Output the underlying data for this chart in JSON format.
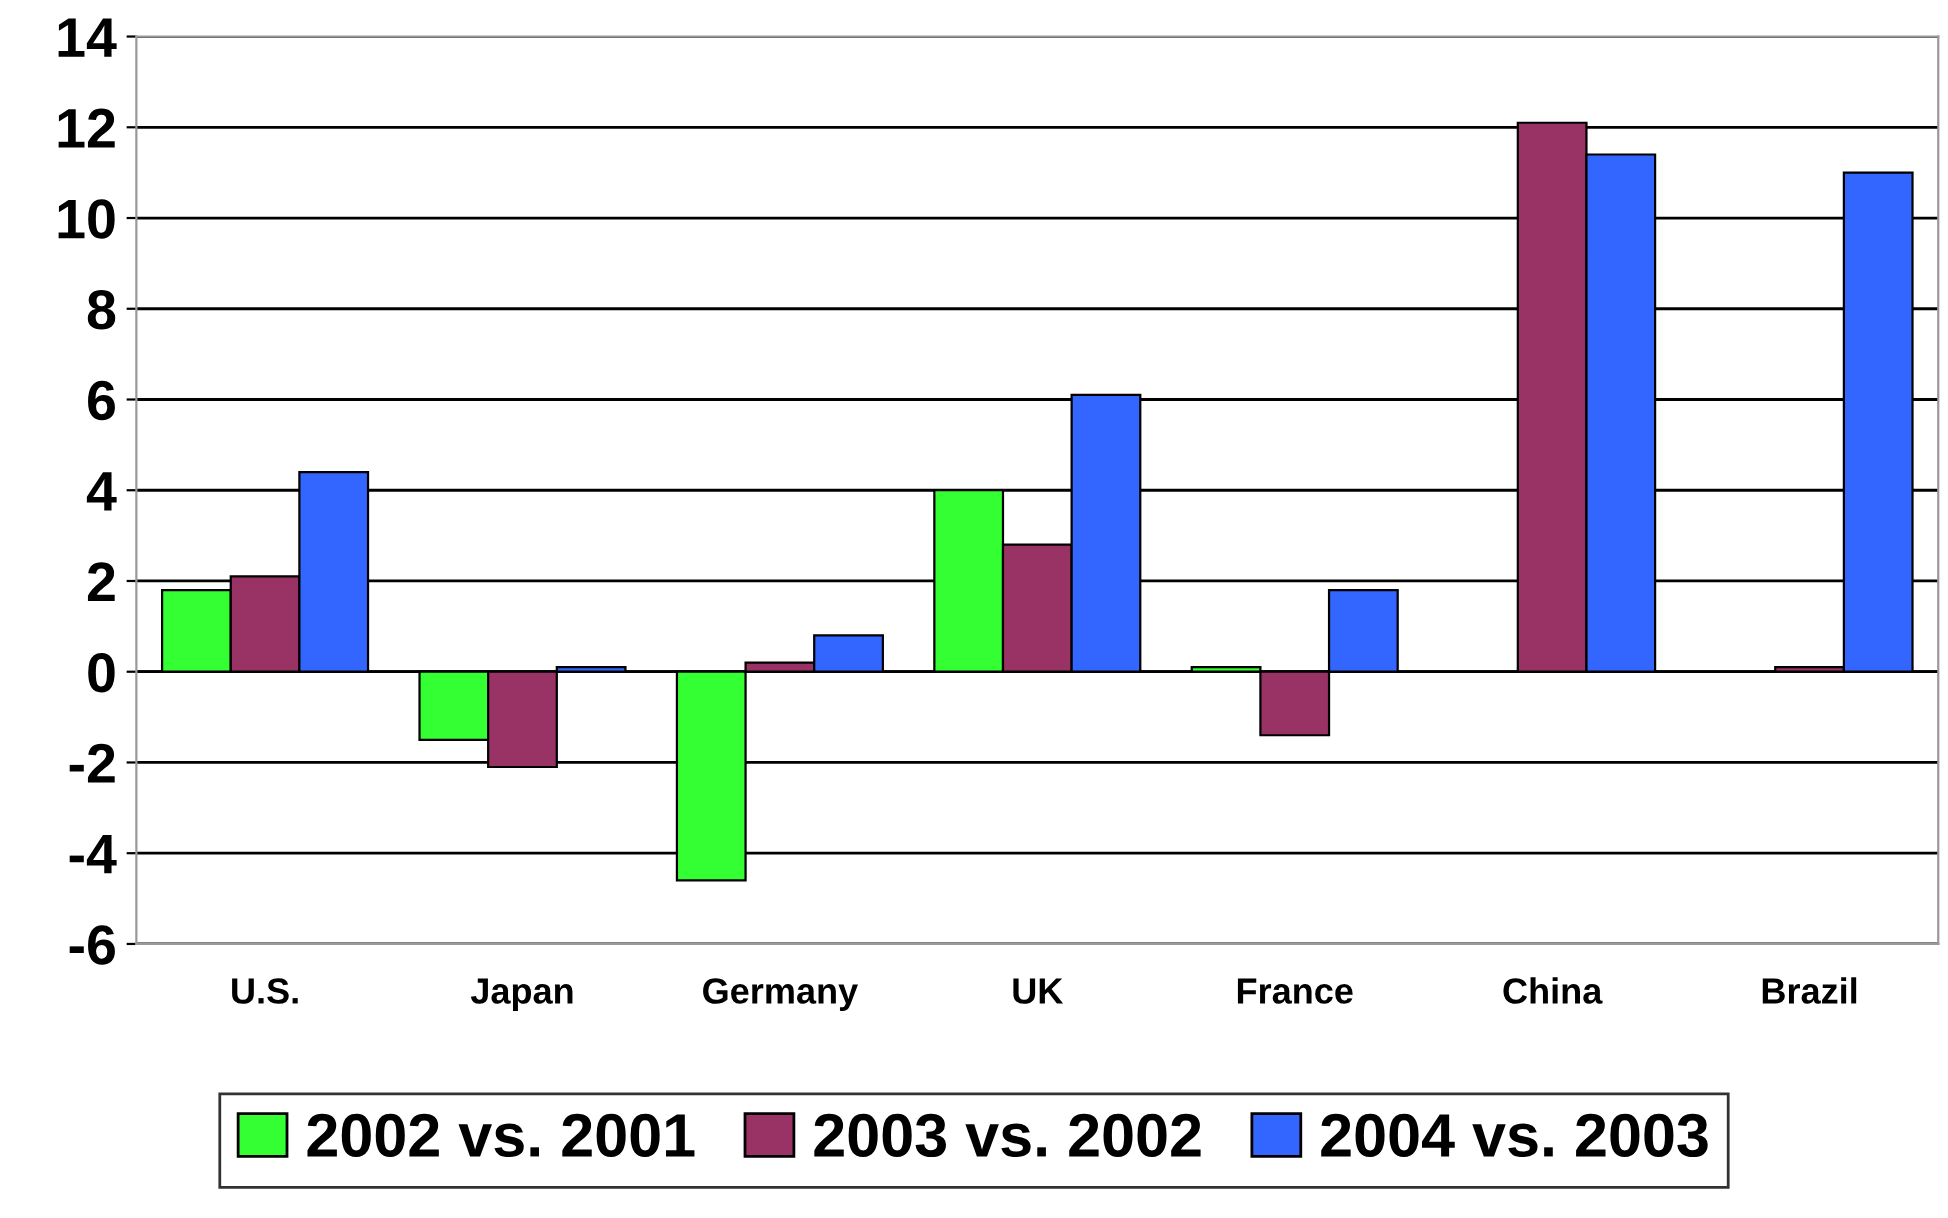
{
  "chart_data": {
    "type": "bar",
    "categories": [
      "U.S.",
      "Japan",
      "Germany",
      "UK",
      "France",
      "China",
      "Brazil"
    ],
    "series": [
      {
        "name": "2002 vs. 2001",
        "color": "#33ff33",
        "values": [
          1.8,
          -1.5,
          -4.6,
          4.0,
          0.1,
          null,
          null
        ]
      },
      {
        "name": "2003 vs. 2002",
        "color": "#993366",
        "values": [
          2.1,
          -2.1,
          0.2,
          2.8,
          -1.4,
          12.1,
          0.1
        ]
      },
      {
        "name": "2004 vs. 2003",
        "color": "#3366ff",
        "values": [
          4.4,
          0.1,
          0.8,
          6.1,
          1.8,
          11.4,
          11.0
        ]
      }
    ],
    "ylim": [
      -6,
      14
    ],
    "yticks": [
      -6,
      -4,
      -2,
      0,
      2,
      4,
      6,
      8,
      10,
      12,
      14
    ],
    "grid": "y",
    "legend": "bottom"
  }
}
